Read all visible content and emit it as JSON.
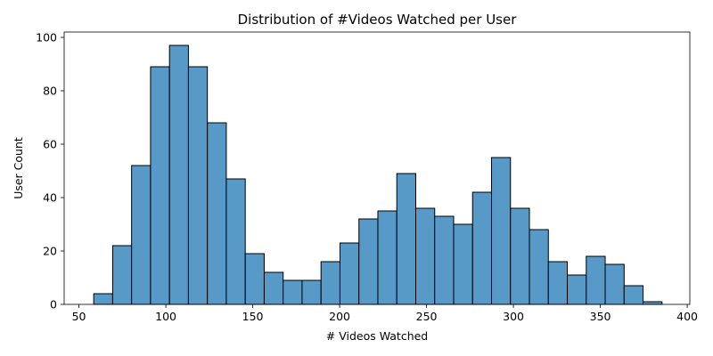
{
  "chart_data": {
    "type": "bar",
    "title": "Distribution of #Videos Watched per User",
    "xlabel": "# Videos Watched",
    "ylabel": "User Count",
    "xlim": [
      41.5,
      401.5
    ],
    "ylim": [
      0,
      102
    ],
    "xticks": [
      50,
      100,
      150,
      200,
      250,
      300,
      350,
      400
    ],
    "yticks": [
      0,
      20,
      40,
      60,
      80,
      100
    ],
    "grid": false,
    "bar_color": "#5799c7",
    "edge_color": "#000000",
    "bins": [
      {
        "x0": 58.5,
        "x1": 69.4,
        "count": 4
      },
      {
        "x0": 69.4,
        "x1": 80.3,
        "count": 22
      },
      {
        "x0": 80.3,
        "x1": 91.2,
        "count": 52
      },
      {
        "x0": 91.2,
        "x1": 102.1,
        "count": 89
      },
      {
        "x0": 102.1,
        "x1": 113.0,
        "count": 97
      },
      {
        "x0": 113.0,
        "x1": 123.9,
        "count": 89
      },
      {
        "x0": 123.9,
        "x1": 134.8,
        "count": 68
      },
      {
        "x0": 134.8,
        "x1": 145.7,
        "count": 47
      },
      {
        "x0": 145.7,
        "x1": 156.6,
        "count": 19
      },
      {
        "x0": 156.6,
        "x1": 167.5,
        "count": 12
      },
      {
        "x0": 167.5,
        "x1": 178.4,
        "count": 9
      },
      {
        "x0": 178.4,
        "x1": 189.3,
        "count": 9
      },
      {
        "x0": 189.3,
        "x1": 200.2,
        "count": 16
      },
      {
        "x0": 200.2,
        "x1": 211.1,
        "count": 23
      },
      {
        "x0": 211.1,
        "x1": 222.0,
        "count": 32
      },
      {
        "x0": 222.0,
        "x1": 232.9,
        "count": 35
      },
      {
        "x0": 232.9,
        "x1": 243.8,
        "count": 49
      },
      {
        "x0": 243.8,
        "x1": 254.7,
        "count": 36
      },
      {
        "x0": 254.7,
        "x1": 265.6,
        "count": 33
      },
      {
        "x0": 265.6,
        "x1": 276.5,
        "count": 30
      },
      {
        "x0": 276.5,
        "x1": 287.4,
        "count": 42
      },
      {
        "x0": 287.4,
        "x1": 298.3,
        "count": 55
      },
      {
        "x0": 298.3,
        "x1": 309.2,
        "count": 36
      },
      {
        "x0": 309.2,
        "x1": 320.1,
        "count": 28
      },
      {
        "x0": 320.1,
        "x1": 331.0,
        "count": 16
      },
      {
        "x0": 331.0,
        "x1": 341.9,
        "count": 11
      },
      {
        "x0": 341.9,
        "x1": 352.8,
        "count": 18
      },
      {
        "x0": 352.8,
        "x1": 363.7,
        "count": 15
      },
      {
        "x0": 363.7,
        "x1": 374.6,
        "count": 7
      },
      {
        "x0": 374.6,
        "x1": 385.5,
        "count": 1
      }
    ]
  }
}
